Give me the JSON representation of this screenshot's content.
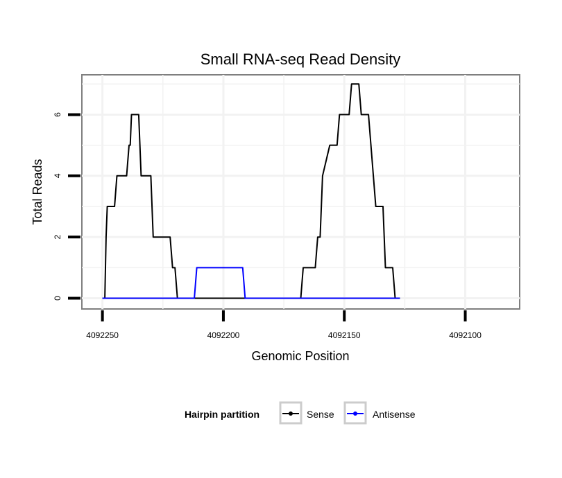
{
  "chart_data": {
    "type": "line",
    "title": "Small RNA-seq Read Density",
    "xlabel": "Genomic Position",
    "ylabel": "Total Reads",
    "x_reversed": true,
    "xlim": [
      4092258.5,
      4092077.5
    ],
    "ylim": [
      -0.35,
      7.3
    ],
    "xticks": [
      4092250,
      4092200,
      4092150,
      4092100
    ],
    "xtick_labels": [
      "4092250",
      "4092200",
      "4092150",
      "4092100"
    ],
    "yticks": [
      0,
      2,
      4,
      6
    ],
    "ytick_labels": [
      "0",
      "2",
      "4",
      "6"
    ],
    "grid": true,
    "legend": {
      "title": "Hairpin partition",
      "position": "bottom",
      "entries": [
        {
          "name": "Sense",
          "color": "#000000"
        },
        {
          "name": "Antisense",
          "color": "#0000ff"
        }
      ]
    },
    "series": [
      {
        "name": "Sense",
        "color": "#000000",
        "x": [
          4092250,
          4092249,
          4092248.5,
          4092248,
          4092246,
          4092245,
          4092244,
          4092243,
          4092240,
          4092239,
          4092238.5,
          4092238,
          4092237,
          4092235,
          4092234,
          4092233,
          4092230,
          4092229,
          4092222,
          4092221,
          4092220,
          4092219,
          4092208,
          4092207,
          4092168,
          4092167,
          4092165,
          4092162,
          4092161,
          4092160,
          4092159,
          4092156,
          4092155,
          4092154,
          4092153,
          4092152,
          4092148,
          4092147,
          4092146,
          4092144,
          4092143,
          4092140,
          4092139,
          4092138,
          4092137,
          4092136,
          4092135,
          4092134,
          4092133,
          4092130,
          4092129,
          4092128,
          4092127
        ],
        "y": [
          0,
          0,
          2,
          3,
          3,
          3,
          4,
          4,
          4,
          5,
          5,
          6,
          6,
          6,
          4,
          4,
          4,
          2,
          2,
          1,
          1,
          0,
          0,
          0,
          0,
          1,
          1,
          1,
          2,
          2,
          4,
          5,
          5,
          5,
          5,
          6,
          6,
          7,
          7,
          7,
          6,
          6,
          5,
          4,
          3,
          3,
          3,
          3,
          1,
          1,
          0,
          0,
          0
        ]
      },
      {
        "name": "Antisense",
        "color": "#0000ff",
        "x": [
          4092250,
          4092212,
          4092211,
          4092192,
          4092191,
          4092127
        ],
        "y": [
          0,
          0,
          1,
          1,
          0,
          0
        ]
      }
    ]
  }
}
